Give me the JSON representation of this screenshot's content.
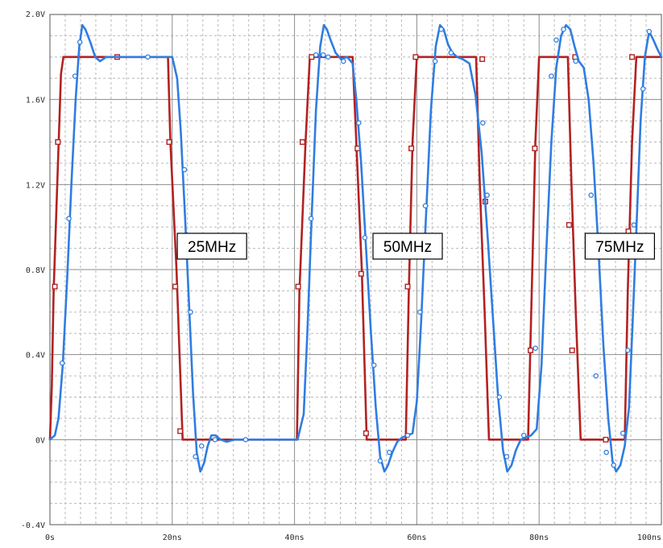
{
  "chart_data": {
    "type": "line",
    "title": "",
    "xlabel": "",
    "ylabel": "",
    "xlim": [
      0,
      100
    ],
    "ylim": [
      -0.4,
      2.0
    ],
    "grid": true,
    "x_ticks": [
      {
        "value": 0,
        "label": "0s"
      },
      {
        "value": 20,
        "label": "20ns"
      },
      {
        "value": 40,
        "label": "40ns"
      },
      {
        "value": 60,
        "label": "60ns"
      },
      {
        "value": 80,
        "label": "80ns"
      },
      {
        "value": 100,
        "label": "100ns"
      }
    ],
    "y_ticks": [
      {
        "value": 2.0,
        "label": "2.0V"
      },
      {
        "value": 1.6,
        "label": "1.6V"
      },
      {
        "value": 1.2,
        "label": "1.2V"
      },
      {
        "value": 0.8,
        "label": "0.8V"
      },
      {
        "value": 0.4,
        "label": "0.4V"
      },
      {
        "value": 0.0,
        "label": "0V"
      },
      {
        "value": -0.4,
        "label": "-0.4V"
      }
    ],
    "series": [
      {
        "color": "#b22222",
        "marker": "square",
        "x": [
          0,
          0.3,
          0.6,
          1.8,
          2.2,
          19.3,
          19.7,
          20.7,
          21.7,
          40.4,
          40.8,
          41.8,
          42.5,
          49.5,
          50.1,
          51.0,
          51.8,
          58.2,
          58.7,
          59.3,
          60.0,
          69.7,
          70.3,
          71.1,
          71.8,
          78.2,
          78.8,
          79.4,
          80.0,
          84.7,
          85.3,
          86.0,
          86.8,
          94.0,
          94.5,
          95.2,
          95.9,
          100
        ],
        "y": [
          0,
          0.25,
          0.7,
          1.72,
          1.8,
          1.8,
          1.4,
          0.8,
          0,
          0,
          0.7,
          1.4,
          1.8,
          1.8,
          1.4,
          0.8,
          0,
          0,
          0.7,
          1.4,
          1.8,
          1.8,
          1.2,
          0.6,
          0,
          0,
          0.7,
          1.4,
          1.8,
          1.8,
          1.2,
          0.6,
          0,
          0,
          0.7,
          1.4,
          1.8,
          1.8
        ],
        "marker_x": [
          0.8,
          1.3,
          11.0,
          19.5,
          20.5,
          21.3,
          40.6,
          41.3,
          42.8,
          50.3,
          50.9,
          51.7,
          58.5,
          59.1,
          59.8,
          70.7,
          71.2,
          78.6,
          79.3,
          84.9,
          85.4,
          85.9,
          90.9,
          94.6,
          95.2
        ],
        "marker_y": [
          0.72,
          1.4,
          1.8,
          1.4,
          0.72,
          0.04,
          0.72,
          1.4,
          1.8,
          1.37,
          0.78,
          0.03,
          0.72,
          1.37,
          1.8,
          1.79,
          1.12,
          0.42,
          1.37,
          1.01,
          0.42,
          1.8,
          0.0,
          0.98,
          1.8
        ]
      },
      {
        "color": "#2f7de1",
        "marker": "circle",
        "x": [
          0,
          0.8,
          1.4,
          2.1,
          2.8,
          3.5,
          4.2,
          4.8,
          5.3,
          5.8,
          6.6,
          7.4,
          8.2,
          9.2,
          10.5,
          12.5,
          20.0,
          20.8,
          21.4,
          22.1,
          22.8,
          23.4,
          24.0,
          24.6,
          25.2,
          25.8,
          26.4,
          27.1,
          27.9,
          28.9,
          30.2,
          32.0,
          40.5,
          41.5,
          42.1,
          42.8,
          43.5,
          44.2,
          44.8,
          45.3,
          45.9,
          46.7,
          47.6,
          48.6,
          49.5,
          50.1,
          50.9,
          51.7,
          52.5,
          53.3,
          54.0,
          54.7,
          55.3,
          56.0,
          56.8,
          57.6,
          58.5,
          59.3,
          60.0,
          60.7,
          61.5,
          62.3,
          63.1,
          63.8,
          64.4,
          65.1,
          65.8,
          66.6,
          67.5,
          68.6,
          69.6,
          70.6,
          71.6,
          72.5,
          73.3,
          74.1,
          74.8,
          75.5,
          76.2,
          77.0,
          77.8,
          78.7,
          79.6,
          80.4,
          81.2,
          82.0,
          82.8,
          83.6,
          84.4,
          85.1,
          85.8,
          86.5,
          87.3,
          88.1,
          88.9,
          89.7,
          90.5,
          91.3,
          92.0,
          92.6,
          93.3,
          94.0,
          94.7,
          95.3,
          96.0,
          96.6,
          97.3,
          98.0,
          98.7,
          99.3,
          100
        ],
        "y": [
          0,
          0.02,
          0.1,
          0.35,
          0.75,
          1.2,
          1.6,
          1.85,
          1.95,
          1.93,
          1.87,
          1.8,
          1.78,
          1.8,
          1.8,
          1.8,
          1.8,
          1.7,
          1.45,
          1.05,
          0.6,
          0.22,
          -0.06,
          -0.15,
          -0.11,
          -0.03,
          0.02,
          0.02,
          0.0,
          -0.01,
          0.0,
          0.0,
          0.0,
          0.12,
          0.5,
          1.05,
          1.55,
          1.85,
          1.95,
          1.93,
          1.88,
          1.82,
          1.79,
          1.8,
          1.77,
          1.6,
          1.3,
          0.9,
          0.5,
          0.15,
          -0.08,
          -0.15,
          -0.12,
          -0.06,
          -0.01,
          0.01,
          0.02,
          0.03,
          0.18,
          0.55,
          1.05,
          1.55,
          1.85,
          1.95,
          1.93,
          1.86,
          1.82,
          1.8,
          1.79,
          1.77,
          1.62,
          1.35,
          0.95,
          0.55,
          0.2,
          -0.05,
          -0.15,
          -0.12,
          -0.05,
          0.0,
          0.01,
          0.02,
          0.05,
          0.35,
          0.9,
          1.4,
          1.75,
          1.9,
          1.95,
          1.93,
          1.85,
          1.78,
          1.75,
          1.6,
          1.3,
          0.9,
          0.45,
          0.1,
          -0.1,
          -0.15,
          -0.12,
          -0.03,
          0.15,
          0.55,
          1.05,
          1.5,
          1.8,
          1.92,
          1.88,
          1.84,
          1.8
        ],
        "marker_x": [
          2.0,
          3.1,
          4.1,
          4.9,
          16.0,
          22.0,
          23.0,
          23.8,
          24.8,
          27.0,
          32.0,
          42.7,
          43.5,
          44.7,
          45.5,
          48.0,
          50.5,
          51.5,
          53.0,
          54.0,
          55.5,
          58.5,
          60.5,
          61.4,
          63.0,
          64.0,
          65.6,
          70.8,
          71.5,
          73.5,
          74.7,
          77.5,
          79.4,
          82.0,
          82.8,
          84.0,
          86.0,
          88.5,
          89.3,
          91.0,
          92.2,
          93.7,
          94.5,
          95.5,
          97.0,
          98.0
        ],
        "marker_y": [
          0.36,
          1.04,
          1.71,
          1.87,
          1.8,
          1.27,
          0.6,
          -0.08,
          -0.03,
          0.0,
          0.0,
          1.04,
          1.81,
          1.81,
          1.8,
          1.78,
          1.49,
          0.95,
          0.35,
          -0.1,
          -0.06,
          0.02,
          0.6,
          1.1,
          1.78,
          1.93,
          1.82,
          1.49,
          1.15,
          0.2,
          -0.08,
          0.02,
          0.43,
          1.71,
          1.88,
          1.93,
          1.78,
          1.15,
          0.3,
          -0.06,
          -0.12,
          0.03,
          0.42,
          1.01,
          1.65,
          1.92
        ]
      }
    ],
    "annotations": [
      {
        "text": "25MHz",
        "x": 26.5,
        "y": 0.91
      },
      {
        "text": "50MHz",
        "x": 58.5,
        "y": 0.91
      },
      {
        "text": "75MHz",
        "x": 93.2,
        "y": 0.91
      }
    ]
  }
}
